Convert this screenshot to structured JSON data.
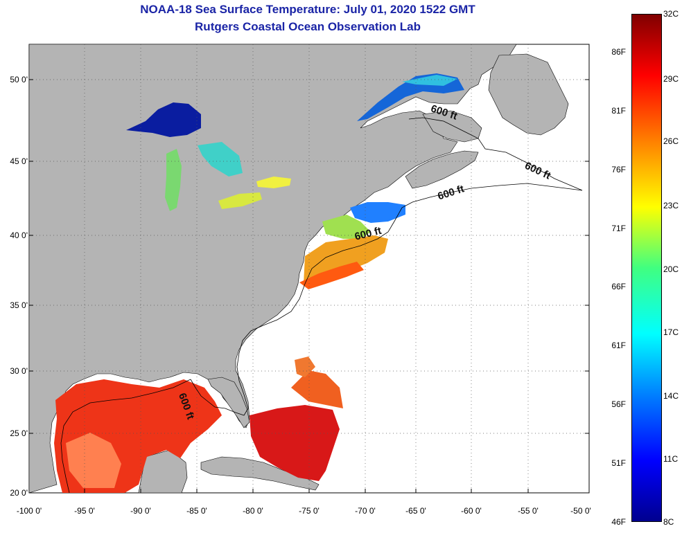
{
  "header": {
    "title_line1": "NOAA-18 Sea Surface Temperature:  July 01, 2020 1522 GMT",
    "title_line2": "Rutgers Coastal Ocean Observation Lab"
  },
  "map": {
    "lat_ticks": [
      "50 0'",
      "45 0'",
      "40 0'",
      "35 0'",
      "30 0'",
      "25 0'",
      "20 0'"
    ],
    "lon_ticks": [
      "-100 0'",
      "-95 0'",
      "-90 0'",
      "-85 0'",
      "-80 0'",
      "-75 0'",
      "-70 0'",
      "-65 0'",
      "-60 0'",
      "-55 0'",
      "-50 0'"
    ],
    "isobath_label": "600 ft",
    "land_color": "#b4b4b4",
    "ocean_color": "#ffffff"
  },
  "colorbar": {
    "fahrenheit_labels": [
      "86F",
      "81F",
      "76F",
      "71F",
      "66F",
      "61F",
      "56F",
      "51F",
      "46F"
    ],
    "celsius_labels": [
      "32C",
      "29C",
      "26C",
      "23C",
      "20C",
      "17C",
      "14C",
      "11C",
      "8C"
    ]
  }
}
